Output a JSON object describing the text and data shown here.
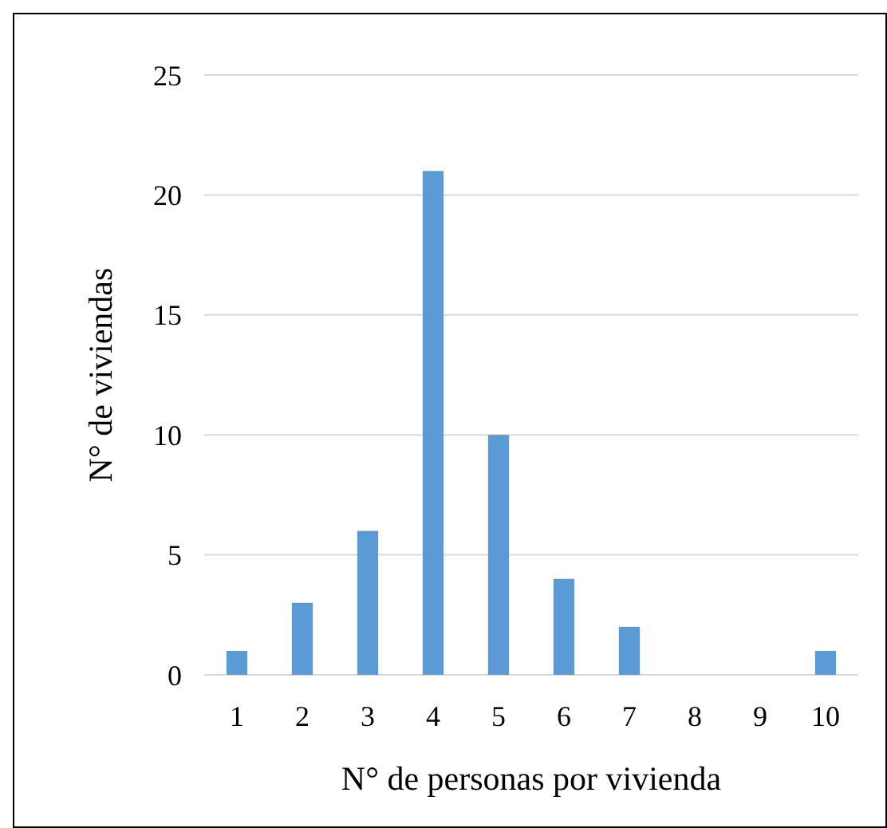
{
  "chart_data": {
    "type": "bar",
    "xlabel": "N° de personas por vivienda",
    "ylabel": "N° de viviendas",
    "categories": [
      "1",
      "2",
      "3",
      "4",
      "5",
      "6",
      "7",
      "8",
      "9",
      "10"
    ],
    "values": [
      1,
      3,
      6,
      21,
      10,
      4,
      2,
      0,
      0,
      1
    ],
    "color": "#5b9bd5",
    "ylim": [
      0,
      25
    ],
    "yticks": [
      0,
      5,
      10,
      15,
      20,
      25
    ],
    "grid": "y"
  }
}
